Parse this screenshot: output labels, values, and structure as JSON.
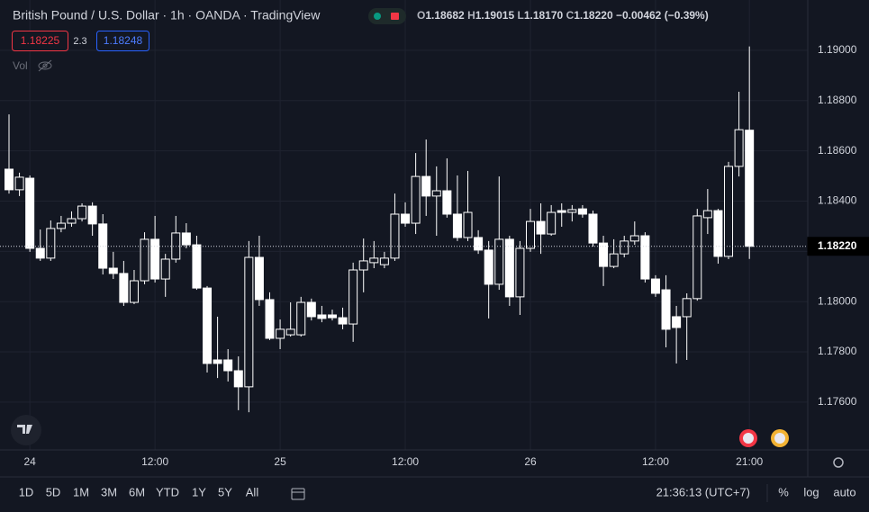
{
  "header": {
    "title": "British Pound / U.S. Dollar · 1h · OANDA · TradingView",
    "ohlc": [
      {
        "key": "O",
        "text": "1.18682"
      },
      {
        "key": "H",
        "text": "1.19015"
      },
      {
        "key": "L",
        "text": "1.18170"
      },
      {
        "key": "C",
        "text": "1.18220"
      }
    ],
    "change": "−0.00462 (−0.39%)",
    "bid": "1.18225",
    "spread": "2.3",
    "ask": "1.18248",
    "volume_label": "Vol"
  },
  "chart_data": {
    "type": "candlestick",
    "categories": [
      null,
      null,
      "24",
      null,
      null,
      null,
      null,
      null,
      null,
      null,
      null,
      null,
      null,
      null,
      "12:00",
      null,
      null,
      null,
      null,
      null,
      null,
      null,
      null,
      null,
      null,
      null,
      "25",
      null,
      null,
      null,
      null,
      null,
      null,
      null,
      null,
      null,
      null,
      null,
      "12:00",
      null,
      null,
      null,
      null,
      null,
      null,
      null,
      null,
      null,
      null,
      null,
      "26",
      null,
      null,
      null,
      null,
      null,
      null,
      null,
      null,
      null,
      null,
      null,
      "12:00",
      null,
      null,
      null,
      null,
      null,
      null,
      null,
      null,
      "21:00"
    ],
    "open": [
      1.18527,
      1.18445,
      1.18491,
      1.18212,
      1.18173,
      1.18291,
      1.18312,
      1.1833,
      1.1838,
      1.18309,
      1.18133,
      1.18112,
      1.17997,
      1.18083,
      1.18248,
      1.1809,
      1.18169,
      1.18273,
      1.18226,
      1.18054,
      1.17768,
      1.17768,
      1.17725,
      1.17661,
      1.18176,
      1.18008,
      1.17854,
      1.17868,
      1.17868,
      1.17997,
      1.17947,
      1.17947,
      1.17936,
      1.17911,
      1.18126,
      1.18155,
      1.18147,
      1.18173,
      1.18348,
      1.18312,
      1.18498,
      1.1842,
      1.18441,
      1.18348,
      1.18255,
      1.18255,
      1.18205,
      1.18069,
      1.18248,
      1.18019,
      1.18212,
      1.18319,
      1.18269,
      1.18362,
      1.18355,
      1.18369,
      1.18348,
      1.18233,
      1.1814,
      1.1819,
      1.18241,
      1.18262,
      1.1809,
      1.18047,
      1.1794,
      1.1794,
      1.18012,
      1.18334,
      1.18362,
      1.1818,
      1.18538,
      1.18682
    ],
    "high": [
      1.18745,
      1.18513,
      1.18502,
      1.18287,
      1.18323,
      1.18341,
      1.18359,
      1.18391,
      1.18395,
      1.18348,
      1.18198,
      1.18162,
      1.18126,
      1.18276,
      1.18341,
      1.1819,
      1.18341,
      1.18312,
      1.18262,
      1.18062,
      1.1794,
      1.17811,
      1.17782,
      1.18241,
      1.18262,
      1.18037,
      1.17929,
      1.17997,
      1.18019,
      1.18012,
      1.17983,
      1.17968,
      1.17976,
      1.18155,
      1.18251,
      1.18241,
      1.18198,
      1.1843,
      1.18395,
      1.18591,
      1.18645,
      1.18538,
      1.1857,
      1.18502,
      1.1852,
      1.18284,
      1.18241,
      1.18498,
      1.18262,
      1.18241,
      1.18369,
      1.18391,
      1.18384,
      1.18391,
      1.18384,
      1.18384,
      1.18362,
      1.18262,
      1.18248,
      1.18262,
      1.18319,
      1.18276,
      1.18105,
      1.18105,
      1.17983,
      1.18033,
      1.18369,
      1.18448,
      1.18369,
      1.18556,
      1.18835,
      1.19015
    ],
    "low": [
      1.1843,
      1.1842,
      1.18198,
      1.18162,
      1.18162,
      1.18276,
      1.18298,
      1.18319,
      1.18262,
      1.18108,
      1.1809,
      1.17983,
      1.1799,
      1.18069,
      1.18076,
      1.18019,
      1.18155,
      1.18212,
      1.18047,
      1.17718,
      1.17696,
      1.17682,
      1.17568,
      1.1756,
      1.17983,
      1.17847,
      1.17811,
      1.17861,
      1.17861,
      1.17925,
      1.17918,
      1.17925,
      1.1789,
      1.1784,
      1.18037,
      1.18133,
      1.18133,
      1.18162,
      1.18298,
      1.18269,
      1.18341,
      1.18262,
      1.18334,
      1.18241,
      1.18241,
      1.1819,
      1.17933,
      1.18047,
      1.17983,
      1.17947,
      1.18198,
      1.1819,
      1.18262,
      1.18298,
      1.18319,
      1.18334,
      1.18219,
      1.18062,
      1.18133,
      1.18176,
      1.18226,
      1.18076,
      1.18019,
      1.17818,
      1.17754,
      1.17768,
      1.18004,
      1.18269,
      1.18151,
      1.18169,
      1.18498,
      1.1817
    ],
    "close": [
      1.18445,
      1.18495,
      1.18212,
      1.18173,
      1.18291,
      1.18312,
      1.1833,
      1.1838,
      1.18309,
      1.18133,
      1.18112,
      1.17997,
      1.18083,
      1.18248,
      1.1809,
      1.18169,
      1.18273,
      1.18226,
      1.18054,
      1.17754,
      1.17754,
      1.17725,
      1.17661,
      1.18176,
      1.18008,
      1.17854,
      1.1789,
      1.1789,
      1.17997,
      1.1794,
      1.17933,
      1.17936,
      1.17911,
      1.18126,
      1.18162,
      1.18173,
      1.18173,
      1.18348,
      1.18312,
      1.18498,
      1.1842,
      1.18441,
      1.18348,
      1.18255,
      1.18355,
      1.18205,
      1.18069,
      1.18248,
      1.18019,
      1.18212,
      1.18319,
      1.18269,
      1.18355,
      1.18355,
      1.18366,
      1.18348,
      1.18233,
      1.1814,
      1.1819,
      1.18241,
      1.18262,
      1.1809,
      1.18033,
      1.1789,
      1.17897,
      1.18012,
      1.18341,
      1.18362,
      1.1818,
      1.18538,
      1.18684,
      1.1822
    ],
    "ylim": [
      1.1741,
      1.192
    ],
    "yticks": [
      {
        "value": 1.176,
        "label": "1.17600"
      },
      {
        "value": 1.178,
        "label": "1.17800"
      },
      {
        "value": 1.18,
        "label": "1.18000"
      },
      {
        "value": 1.182,
        "label": "1.18200"
      },
      {
        "value": 1.184,
        "label": "1.18400"
      },
      {
        "value": 1.186,
        "label": "1.18600"
      },
      {
        "value": 1.188,
        "label": "1.18800"
      },
      {
        "value": 1.19,
        "label": "1.19000"
      }
    ],
    "last_price": {
      "value": 1.1822,
      "label": "1.18220"
    },
    "up_color": "#ffffff",
    "down_color": "#ffffff",
    "hollow_up": true,
    "grid": true
  },
  "toolbar": {
    "ranges": [
      "1D",
      "5D",
      "1M",
      "3M",
      "6M",
      "YTD",
      "1Y",
      "5Y",
      "All"
    ],
    "clock": "21:36:13 (UTC+7)",
    "options": [
      "%",
      "log",
      "auto"
    ]
  }
}
